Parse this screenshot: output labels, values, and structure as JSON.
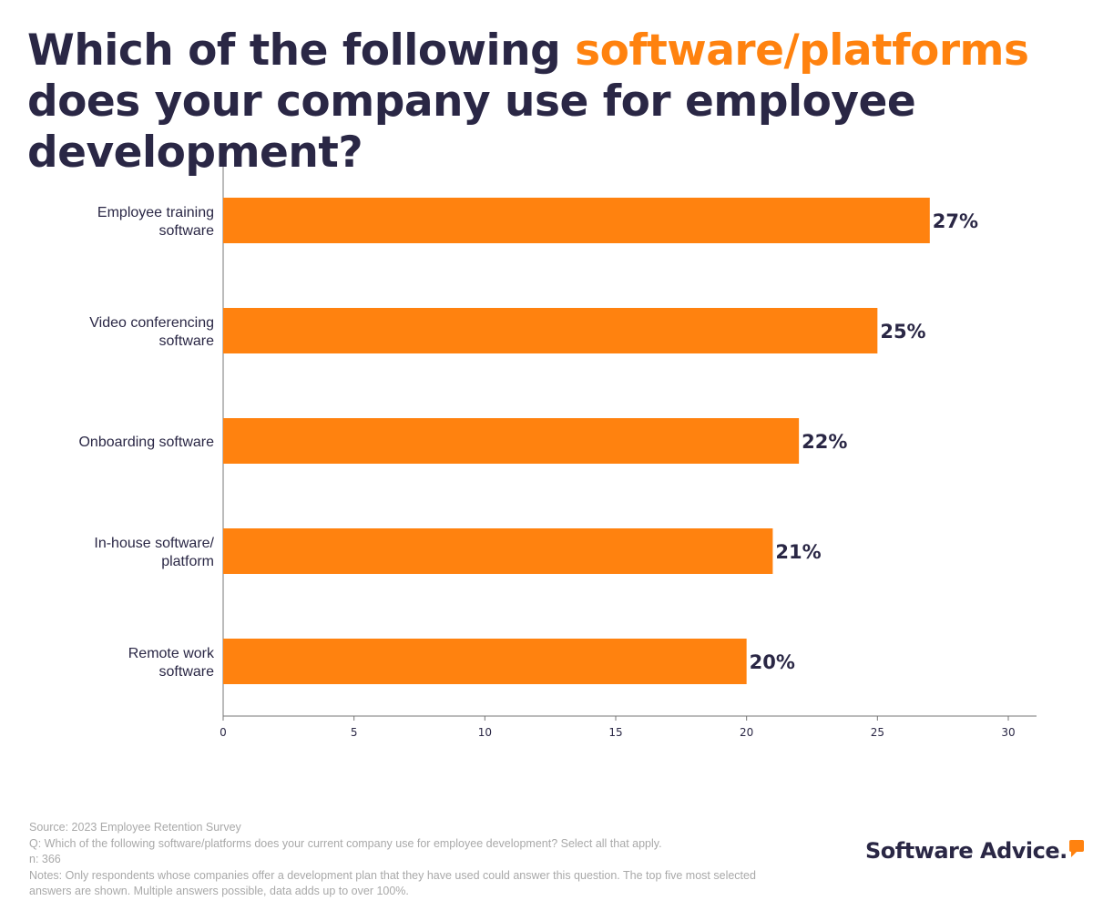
{
  "chart_data": {
    "type": "bar",
    "orientation": "horizontal",
    "title": {
      "before": "Which of the following ",
      "highlight": "software/platforms",
      "after": " does your company use for employee development?"
    },
    "categories": [
      [
        "Employee training",
        "software"
      ],
      [
        "Video conferencing",
        "software"
      ],
      [
        "Onboarding software"
      ],
      [
        "In-house software/",
        "platform"
      ],
      [
        "Remote work",
        "software"
      ]
    ],
    "values": [
      27,
      25,
      22,
      21,
      20
    ],
    "data_labels": [
      "27%",
      "25%",
      "22%",
      "21%",
      "20%"
    ],
    "xlim": [
      0,
      31
    ],
    "xticks": [
      0,
      5,
      10,
      15,
      20,
      25,
      30
    ],
    "grid": false,
    "colors": {
      "bar": "#ff820f",
      "text": "#2a2745",
      "highlight": "#ff820f"
    }
  },
  "footer": {
    "source": "Source: 2023 Employee Retention Survey",
    "question": "Q: Which of the following software/platforms does your current company use for employee development? Select all that apply.",
    "n": "n: 366",
    "notes": "Notes: Only respondents whose companies offer a development plan that they have used could answer this question. The top five most selected answers are shown. Multiple answers possible, data adds up to over 100%."
  },
  "logo": {
    "text": "Software Advice."
  }
}
